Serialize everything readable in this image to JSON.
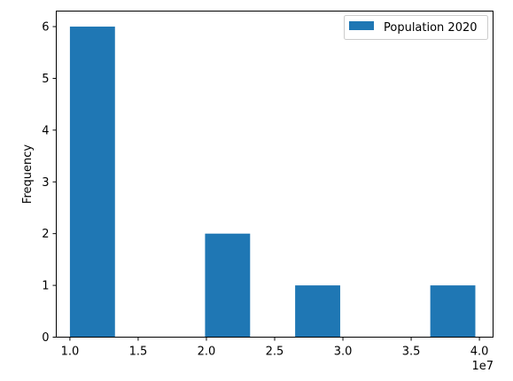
{
  "chart_data": {
    "type": "bar",
    "title": "",
    "xlabel": "",
    "ylabel": "Frequency",
    "x_offset_label": "1e7",
    "xlim": [
      0.9,
      4.1
    ],
    "ylim": [
      0,
      6.3
    ],
    "xticks": [
      1.0,
      1.5,
      2.0,
      2.5,
      3.0,
      3.5,
      4.0
    ],
    "xtick_labels": [
      "1.0",
      "1.5",
      "2.0",
      "2.5",
      "3.0",
      "3.5",
      "4.0"
    ],
    "yticks": [
      0,
      1,
      2,
      3,
      4,
      5,
      6
    ],
    "ytick_labels": [
      "0",
      "1",
      "2",
      "3",
      "4",
      "5",
      "6"
    ],
    "bin_edges": [
      1.0,
      1.33,
      1.66,
      1.99,
      2.32,
      2.65,
      2.98,
      3.31,
      3.64,
      3.97
    ],
    "bin_width": 0.3301,
    "counts": [
      6,
      0,
      0,
      2,
      0,
      1,
      0,
      0,
      1,
      0
    ],
    "series": [
      {
        "name": "Population 2020",
        "color": "#1f77b4"
      }
    ],
    "legend_position": "top-right",
    "grid": false
  }
}
